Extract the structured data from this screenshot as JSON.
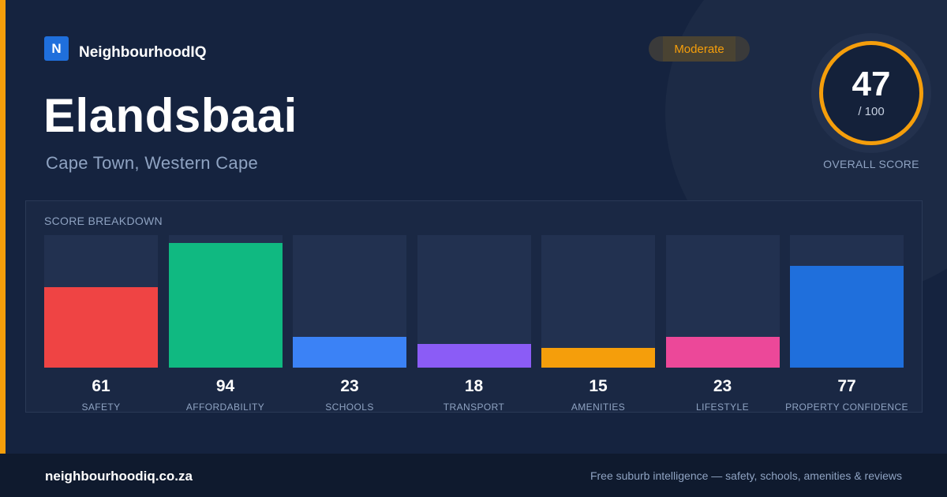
{
  "brand": {
    "logo_letter": "N",
    "name": "NeighbourhoodIQ"
  },
  "suburb": "Elandsbaai",
  "location": "Cape Town, Western Cape",
  "badge": {
    "label": "Moderate"
  },
  "overall": {
    "score": "47",
    "max": "/ 100",
    "label": "OVERALL SCORE",
    "ring_color": "#f59e0b"
  },
  "breakdown": {
    "title": "SCORE BREAKDOWN",
    "max_value": 100,
    "items": [
      {
        "value": 61,
        "label": "SAFETY",
        "color": "#ef4444"
      },
      {
        "value": 94,
        "label": "AFFORDABILITY",
        "color": "#10b981"
      },
      {
        "value": 23,
        "label": "SCHOOLS",
        "color": "#3b82f6"
      },
      {
        "value": 18,
        "label": "TRANSPORT",
        "color": "#8b5cf6"
      },
      {
        "value": 15,
        "label": "AMENITIES",
        "color": "#f59e0b"
      },
      {
        "value": 23,
        "label": "LIFESTYLE",
        "color": "#ec4899"
      },
      {
        "value": 77,
        "label": "PROPERTY CONFIDENCE",
        "color": "#1f6fdc"
      }
    ]
  },
  "footer": {
    "url": "neighbourhoodiq.co.za",
    "tagline": "Free suburb intelligence — safety, schools, amenities & reviews"
  },
  "colors": {
    "accent": "#f59e0b",
    "background": "#15233f",
    "brand": "#1f6fdc"
  }
}
